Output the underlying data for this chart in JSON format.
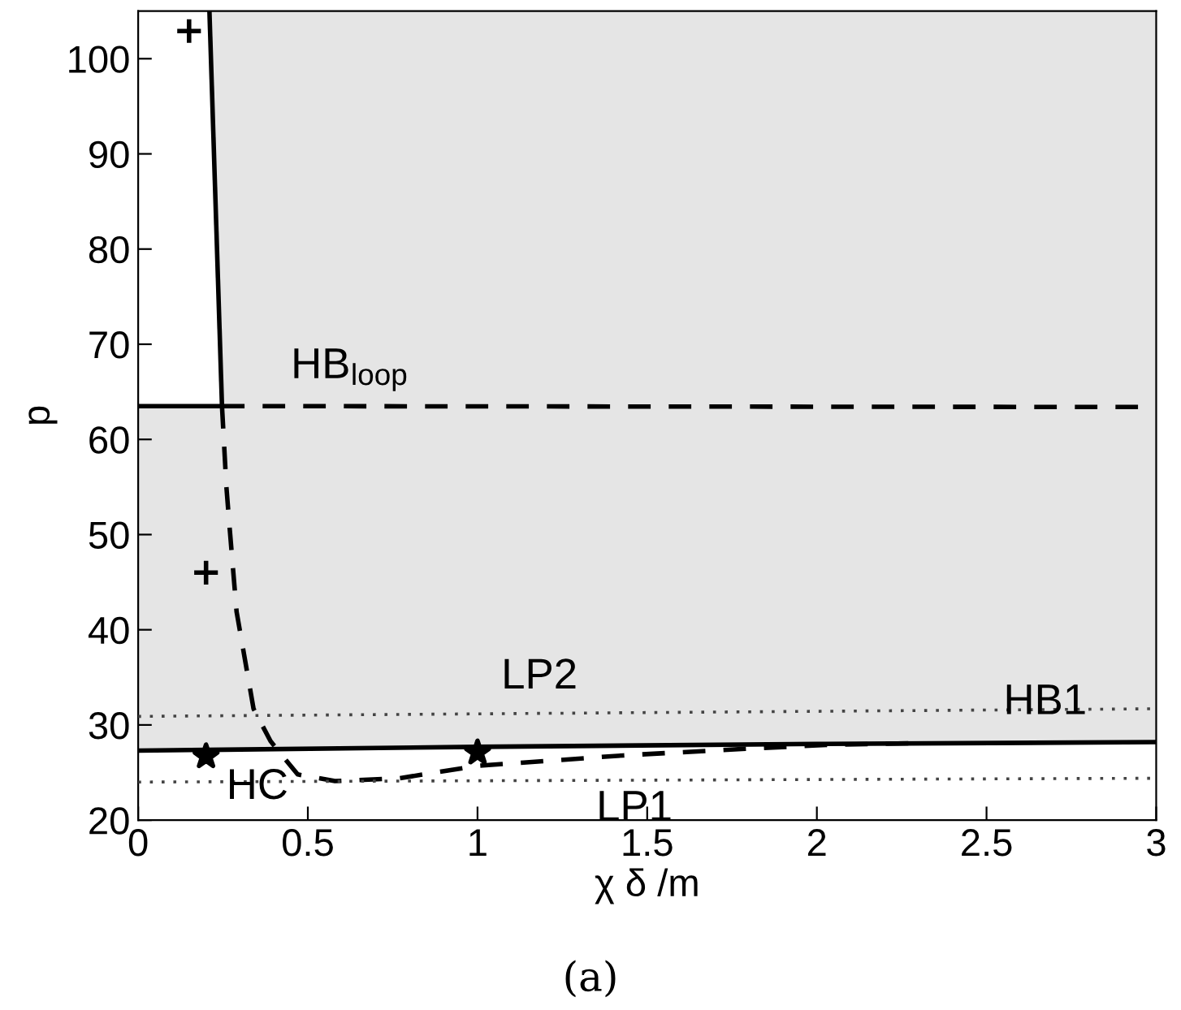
{
  "chart_data": {
    "type": "line",
    "xlabel": "χ δ /m",
    "ylabel": "p",
    "xlim": [
      0,
      3
    ],
    "ylim": [
      20,
      105
    ],
    "xticks": [
      0,
      0.5,
      1,
      1.5,
      2,
      2.5,
      3
    ],
    "yticks": [
      20,
      30,
      40,
      50,
      60,
      70,
      80,
      90,
      100
    ],
    "grid": false,
    "legend": false,
    "series": [
      {
        "color": "#000000",
        "line_style": "solid",
        "x": [
          0.21,
          0.247
        ],
        "values": [
          105,
          63.5
        ]
      },
      {
        "color": "#000000",
        "line_style": "solid",
        "x": [
          0,
          0.247
        ],
        "values": [
          63.5,
          63.5
        ]
      },
      {
        "color": "#000000",
        "line_style": "dashed",
        "x": [
          0.247,
          3
        ],
        "values": [
          63.5,
          63.4
        ]
      },
      {
        "color": "#000000",
        "line_style": "solid",
        "x": [
          0,
          1,
          2,
          3
        ],
        "values": [
          27.3,
          27.7,
          28.0,
          28.2
        ]
      },
      {
        "color": "#000000",
        "line_style": "dashed",
        "x": [
          0.247,
          0.26,
          0.27,
          0.29,
          0.34,
          0.39,
          0.47,
          0.58,
          0.77,
          1.0,
          1.43,
          1.79,
          2.03,
          2.3
        ],
        "values": [
          63.5,
          55.0,
          50.5,
          41.9,
          31.7,
          28.3,
          24.8,
          24.1,
          24.4,
          25.7,
          26.8,
          27.5,
          27.9,
          28.1
        ]
      },
      {
        "color": "#444444",
        "line_style": "dotted",
        "x": [
          0,
          3
        ],
        "values": [
          30.9,
          31.7
        ]
      },
      {
        "color": "#444444",
        "line_style": "dotted",
        "x": [
          0,
          3
        ],
        "values": [
          24.0,
          24.4
        ]
      },
      {
        "type": "scatter",
        "color": "#000000",
        "marker": "cross",
        "x": [
          0.15,
          0.2
        ],
        "values": [
          102.9,
          46.0
        ]
      },
      {
        "type": "scatter",
        "color": "#000000",
        "marker": "star",
        "x": [
          0.2,
          1.0
        ],
        "values": [
          26.7,
          27.1
        ]
      }
    ],
    "annotations": [
      {
        "text": "HB$_{loop}$",
        "x": 0.45,
        "y": 63.5
      },
      {
        "text": "LP2",
        "x": 1.07,
        "y": 31.2
      },
      {
        "text": "HB1",
        "x": 2.55,
        "y": 32.3
      },
      {
        "text": "HC",
        "x": 0.26,
        "y": 23.4
      },
      {
        "text": "LP1",
        "x": 1.35,
        "y": 24.2
      },
      "(a)"
    ]
  }
}
